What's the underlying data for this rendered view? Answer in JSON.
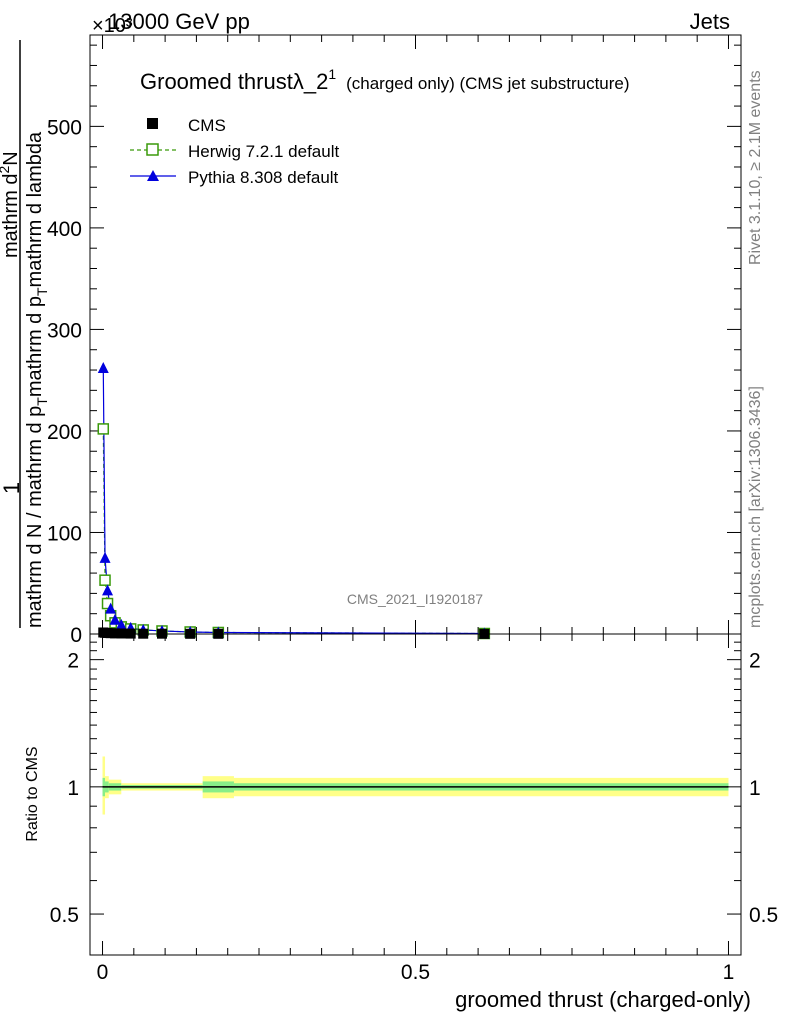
{
  "header": {
    "energy_label": "13000 GeV pp",
    "category_label": "Jets",
    "exponent_label": "×10³"
  },
  "side_labels": {
    "rivet": "Rivet 3.1.10, ≥ 2.1M events",
    "mcplots": "mcplots.cern.ch [arXiv:1306.3436]"
  },
  "watermark": "CMS_2021_I1920187",
  "chart_data": [
    {
      "type": "line",
      "panel": "main",
      "title_main": "Groomed thrustλ_2",
      "title_sup": "1",
      "title_sub": "(charged only) (CMS jet substructure)",
      "ylabel_numerator": "1",
      "ylabel_denominator": "mathrm d N / mathrm d p_T mathrm d p_T mathrm d lambda",
      "ylabel_numerator_full": "mathrm d²N",
      "ylabel_parts": [
        "mathrm d N / mathrm d p",
        "T",
        "mathrm d p",
        "T",
        "mathrm d lambda",
        "mathrm d",
        "2",
        "N"
      ],
      "xlim": [
        -0.02,
        1.02
      ],
      "ylim": [
        0,
        590
      ],
      "x_ticks": [
        0,
        0.5,
        1
      ],
      "y_ticks": [
        0,
        100,
        200,
        300,
        400,
        500
      ],
      "y_tick_labels": [
        "0",
        "100",
        "200",
        "300",
        "400",
        "500"
      ],
      "legend_position": "top-left",
      "legend": [
        {
          "name": "CMS",
          "marker": "filled-square",
          "color": "#000000"
        },
        {
          "name": "Herwig 7.2.1 default",
          "marker": "open-square",
          "color": "#3a9a0a",
          "dashed": true
        },
        {
          "name": "Pythia 8.308 default",
          "marker": "filled-triangle",
          "color": "#0000dd"
        }
      ],
      "series": [
        {
          "name": "CMS",
          "x": [
            0.0012,
            0.004,
            0.008,
            0.013,
            0.02,
            0.03,
            0.045,
            0.065,
            0.095,
            0.14,
            0.185,
            0.61
          ],
          "y": [
            1.5,
            1.2,
            1.0,
            0.8,
            0.6,
            0.5,
            0.4,
            0.3,
            0.3,
            0.2,
            0.2,
            0.1
          ]
        },
        {
          "name": "Herwig 7.2.1 default",
          "x": [
            0.0012,
            0.004,
            0.008,
            0.013,
            0.02,
            0.03,
            0.045,
            0.065,
            0.095,
            0.14,
            0.185,
            0.61
          ],
          "y": [
            202,
            53,
            30,
            18,
            11,
            7,
            5,
            4,
            3,
            2,
            1.5,
            0.5
          ]
        },
        {
          "name": "Pythia 8.308 default",
          "x": [
            0.0012,
            0.004,
            0.008,
            0.013,
            0.02,
            0.03,
            0.045,
            0.065,
            0.095,
            0.14,
            0.185,
            0.61
          ],
          "y": [
            262,
            75,
            43,
            25,
            14,
            9,
            6,
            4,
            3,
            2,
            1.5,
            0.5
          ]
        }
      ]
    },
    {
      "type": "area",
      "panel": "ratio",
      "ylabel": "Ratio to CMS",
      "xlabel": "groomed thrust (charged-only)",
      "xlim": [
        -0.02,
        1.02
      ],
      "ylim": [
        0.4,
        2.3
      ],
      "y_scale": "log",
      "x_ticks": [
        0,
        0.5,
        1
      ],
      "x_tick_labels": [
        "0",
        "0.5",
        "1"
      ],
      "y_ticks": [
        0.5,
        1,
        2
      ],
      "y_tick_labels": [
        "0.5",
        "1",
        "2"
      ],
      "reference_line": 1,
      "bands": [
        {
          "x0": 0.0,
          "x1": 0.004,
          "inner": [
            0.95,
            1.05
          ],
          "outer": [
            0.86,
            1.18
          ]
        },
        {
          "x0": 0.004,
          "x1": 0.01,
          "inner": [
            0.97,
            1.03
          ],
          "outer": [
            0.94,
            1.06
          ]
        },
        {
          "x0": 0.01,
          "x1": 0.03,
          "inner": [
            0.98,
            1.02
          ],
          "outer": [
            0.96,
            1.04
          ]
        },
        {
          "x0": 0.03,
          "x1": 0.16,
          "inner": [
            0.99,
            1.01
          ],
          "outer": [
            0.98,
            1.02
          ]
        },
        {
          "x0": 0.16,
          "x1": 0.21,
          "inner": [
            0.97,
            1.03
          ],
          "outer": [
            0.94,
            1.06
          ]
        },
        {
          "x0": 0.21,
          "x1": 1.0,
          "inner": [
            0.98,
            1.02
          ],
          "outer": [
            0.95,
            1.05
          ]
        }
      ]
    }
  ],
  "colors": {
    "band_outer": "#ffff88",
    "band_inner": "#88ee88",
    "herwig": "#3a9a0a",
    "pythia": "#0000dd"
  }
}
